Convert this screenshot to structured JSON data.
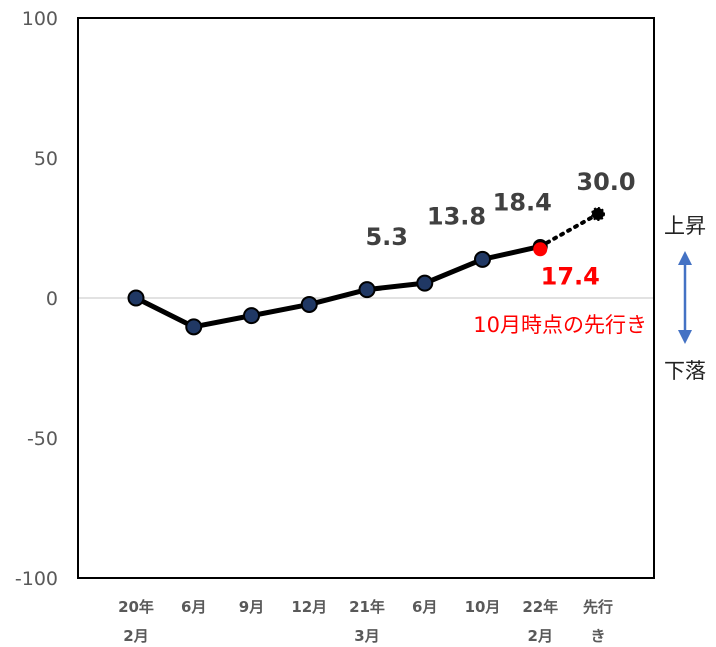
{
  "chart_data": {
    "type": "line",
    "title": "",
    "xlabel": "",
    "ylabel": "",
    "ylim": [
      -100,
      100
    ],
    "yticks": [
      100,
      50,
      0,
      -50,
      -100
    ],
    "grid": false,
    "categories": [
      [
        "20年",
        "2月"
      ],
      [
        "6月"
      ],
      [
        "9月"
      ],
      [
        "12月"
      ],
      [
        "21年",
        "3月"
      ],
      [
        "6月"
      ],
      [
        "10月"
      ],
      [
        "22年",
        "2月"
      ],
      [
        "先行",
        "き"
      ]
    ],
    "series": [
      {
        "values": [
          0,
          -10.3,
          -6.3,
          -2.3,
          3,
          5.3,
          13.8,
          18.4,
          null
        ],
        "color": "#000000",
        "marker_color": "#203864"
      }
    ],
    "forecast": {
      "from_index": 7,
      "to_index": 8,
      "from_value": 18.4,
      "to_value": 30.0,
      "style": "dotted",
      "color": "#000000"
    },
    "highlight_point": {
      "index": 7,
      "value": 17.4,
      "color": "#ff0000"
    },
    "data_labels": [
      {
        "index": 5,
        "text": "5.3"
      },
      {
        "index": 6,
        "text": "13.8"
      },
      {
        "index": 7,
        "text": "18.4"
      },
      {
        "index": 8,
        "text": "30.0"
      }
    ],
    "annotations": {
      "highlight_label": "17.4",
      "note": "10月時点の先行き",
      "up_label": "上昇",
      "down_label": "下落",
      "arrow_color": "#4472c4"
    }
  }
}
